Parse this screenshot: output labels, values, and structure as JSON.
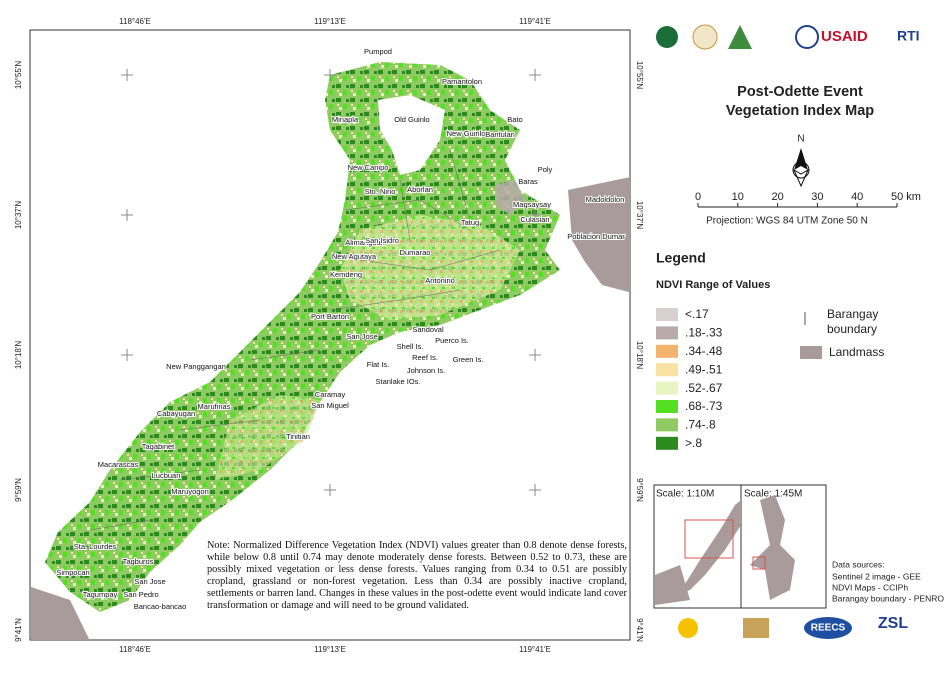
{
  "logos_top": [
    "USAID",
    "RTI"
  ],
  "title": [
    "Post-Odette Event",
    "Vegetation Index Map"
  ],
  "north": "N",
  "scale_bar": {
    "ticks": [
      0,
      10,
      20,
      30,
      40,
      {
        "value": 50,
        "label": "50 km"
      }
    ]
  },
  "projection": "Projection: WGS 84 UTM Zone 50 N",
  "legend": {
    "title": "Legend",
    "subtitle": "NDVI Range of Values",
    "classes": [
      {
        "label": "<.17",
        "color": "#d8cfd1"
      },
      {
        "label": ".18-.33",
        "color": "#b9aaa9"
      },
      {
        "label": ".34-.48",
        "color": "#f3b36c"
      },
      {
        "label": ".49-.51",
        "color": "#f9e2a4"
      },
      {
        "label": ".52-.67",
        "color": "#e7f5c1"
      },
      {
        "label": ".68-.73",
        "color": "#54df22"
      },
      {
        "label": ".74-.8",
        "color": "#8fcb62"
      },
      {
        "label": ">.8",
        "color": "#2d8a1f"
      }
    ],
    "barangay": "Barangay boundary",
    "landmass": "Landmass"
  },
  "map": {
    "lon_labels": [
      "118°46'E",
      "119°13'E",
      "119°41'E"
    ],
    "lat_labels": [
      "10°55'N",
      "10°37'N",
      "10°18'N",
      "9°59'N",
      "9°41'N"
    ],
    "places": [
      "Pumpod",
      "Pamantolon",
      "Minapla",
      "Old Guinlo",
      "New Guinlo",
      "Bantulan",
      "Bato",
      "New Canipo",
      "Poly",
      "Baras",
      "Sto. Nino",
      "Aborlan",
      "Magsaysay",
      "Culasian",
      "Madoldolon",
      "Alimanguan",
      "Tatug",
      "Poblacion Dumar",
      "San Isidro",
      "Dumarao",
      "New Agutaya",
      "Kemdeng",
      "Antonino",
      "Port Barton",
      "Sandoval",
      "San Jose",
      "Shell Is.",
      "Puerco Is.",
      "Reef Is.",
      "Green Is.",
      "Flat Is.",
      "Johnson Is.",
      "Stanlake IOs.",
      "New Panggangan",
      "Caramay",
      "San Miguel",
      "Cabayugan",
      "Marufinas",
      "Tinitian",
      "Tagabinet",
      "Macarascas",
      "Lucbuan",
      "Maruyogon",
      "Sta. Lourdes",
      "Simpocan",
      "Tagburos",
      "San Jose",
      "Tagumpay",
      "San Pedro",
      "Bancao-bancao"
    ],
    "note": "Note: Normalized Difference Vegetation Index (NDVI) values greater than 0.8 denote dense forests, while below 0.8 until 0.74 may denote moderately dense forests. Between 0.52 to 0.73, these are possibly mixed vegetation or less dense forests. Values ranging from 0.34 to 0.51 are possibly cropland, grassland or non-forest vegetation. Less than 0.34 are possibly inactive cropland, settlements or barren land. Changes in these values in the post-odette event would indicate land cover transformation or damage and will need to be ground validated."
  },
  "insets": [
    "Scale: 1:10M",
    "Scale: 1:45M"
  ],
  "data_sources": {
    "title": "Data sources:",
    "lines": [
      "Sentinel 2 image - GEE",
      "NDVI Maps - CCIPh",
      "Barangay boundary - PENRO"
    ]
  },
  "logos_bottom": [
    "REECS",
    "ZSL"
  ]
}
